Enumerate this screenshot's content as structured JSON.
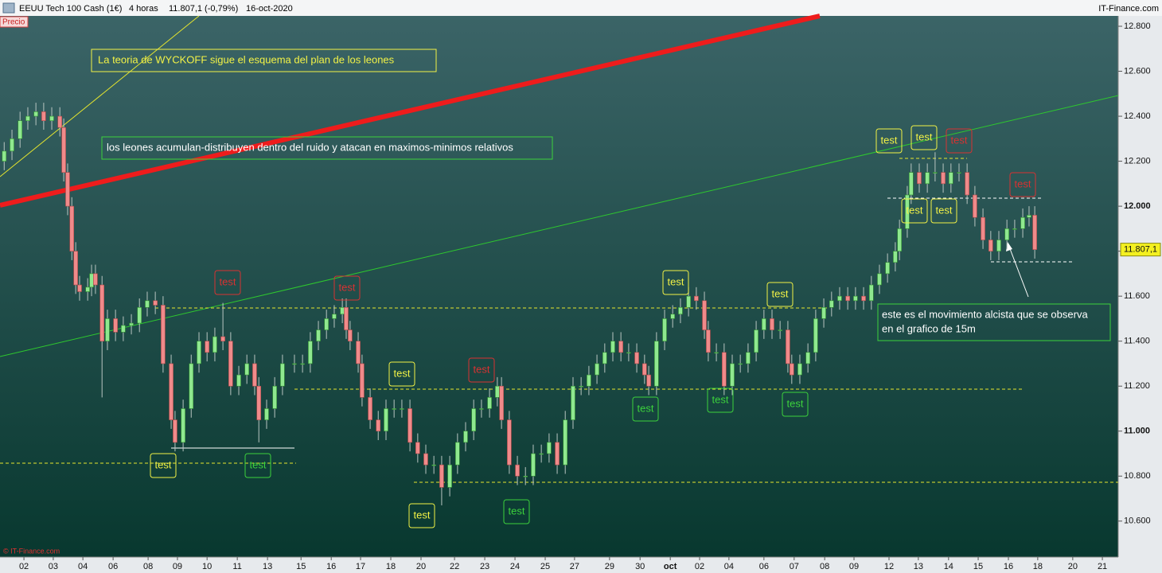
{
  "header": {
    "symbol": "EEUU Tech 100 Cash (1€)",
    "timeframe": "4 horas",
    "quote": "11.807,1 (-0,79%)",
    "date": "16-oct-2020",
    "brand": "IT-Finance.com",
    "series_label": "Precio",
    "copyright": "© IT-Finance.com"
  },
  "chart_data": {
    "type": "candlestick",
    "up_color": "#8fe88f",
    "down_color": "#f08a8a",
    "last_label": "11.807,1",
    "xlim": [
      -0.8,
      36.57
    ],
    "ylim": [
      10440,
      12846
    ],
    "xticks": [
      {
        "value": 0,
        "label": "02"
      },
      {
        "value": 0.98,
        "label": "03"
      },
      {
        "value": 1.97,
        "label": "04"
      },
      {
        "value": 2.98,
        "label": "06"
      },
      {
        "value": 4.15,
        "label": "08"
      },
      {
        "value": 5.13,
        "label": "09"
      },
      {
        "value": 6.12,
        "label": "10"
      },
      {
        "value": 7.13,
        "label": "11"
      },
      {
        "value": 8.14,
        "label": "13"
      },
      {
        "value": 9.26,
        "label": "15"
      },
      {
        "value": 10.27,
        "label": "16"
      },
      {
        "value": 11.25,
        "label": "17"
      },
      {
        "value": 12.26,
        "label": "18"
      },
      {
        "value": 13.27,
        "label": "20"
      },
      {
        "value": 14.39,
        "label": "22"
      },
      {
        "value": 15.4,
        "label": "23"
      },
      {
        "value": 16.41,
        "label": "24"
      },
      {
        "value": 17.42,
        "label": "25"
      },
      {
        "value": 18.4,
        "label": "27"
      },
      {
        "value": 19.57,
        "label": "29"
      },
      {
        "value": 20.59,
        "label": "30"
      },
      {
        "value": 21.6,
        "label": "oct"
      },
      {
        "value": 22.58,
        "label": "02"
      },
      {
        "value": 23.56,
        "label": "04"
      },
      {
        "value": 24.73,
        "label": "06"
      },
      {
        "value": 25.74,
        "label": "07"
      },
      {
        "value": 26.76,
        "label": "08"
      },
      {
        "value": 27.74,
        "label": "09"
      },
      {
        "value": 28.91,
        "label": "12"
      },
      {
        "value": 29.89,
        "label": "13"
      },
      {
        "value": 30.9,
        "label": "14"
      },
      {
        "value": 31.89,
        "label": "15"
      },
      {
        "value": 32.9,
        "label": "16"
      },
      {
        "value": 33.88,
        "label": "18"
      },
      {
        "value": 35.05,
        "label": "20"
      },
      {
        "value": 36.04,
        "label": "21"
      }
    ],
    "yticks": [
      {
        "value": 10600,
        "label": "10.600"
      },
      {
        "value": 10800,
        "label": "10.800"
      },
      {
        "value": 11000,
        "label": "11.000"
      },
      {
        "value": 11200,
        "label": "11.200"
      },
      {
        "value": 11400,
        "label": "11.400"
      },
      {
        "value": 11600,
        "label": "11.600"
      },
      {
        "value": 11800,
        "label": "11.800"
      },
      {
        "value": 12000,
        "label": "12.000"
      },
      {
        "value": 12200,
        "label": "12.200"
      },
      {
        "value": 12400,
        "label": "12.400"
      },
      {
        "value": 12600,
        "label": "12.600"
      },
      {
        "value": 12800,
        "label": "12.800"
      }
    ],
    "x": [
      -0.66,
      -0.4,
      -0.13,
      0.13,
      0.4,
      0.66,
      0.93,
      1.2,
      1.33,
      1.46,
      1.6,
      1.73,
      1.86,
      2.13,
      2.26,
      2.39,
      2.61,
      2.79,
      3.06,
      3.32,
      3.59,
      3.86,
      4.12,
      4.39,
      4.65,
      4.92,
      5.05,
      5.32,
      5.59,
      5.85,
      6.12,
      6.38,
      6.65,
      6.91,
      7.18,
      7.45,
      7.71,
      7.85,
      8.11,
      8.38,
      8.64,
      9.04,
      9.31,
      9.57,
      9.84,
      10.11,
      10.37,
      10.64,
      10.77,
      10.9,
      11.17,
      11.3,
      11.57,
      11.84,
      12.1,
      12.37,
      12.63,
      12.9,
      13.16,
      13.43,
      13.7,
      13.96,
      14.23,
      14.49,
      14.76,
      15.03,
      15.29,
      15.56,
      15.82,
      15.96,
      16.22,
      16.49,
      16.76,
      17.02,
      17.29,
      17.55,
      17.82,
      18.09,
      18.35,
      18.62,
      18.88,
      19.15,
      19.41,
      19.68,
      19.95,
      20.21,
      20.48,
      20.74,
      20.88,
      21.14,
      21.41,
      21.68,
      21.94,
      22.21,
      22.47,
      22.74,
      22.87,
      23.14,
      23.4,
      23.67,
      23.94,
      24.2,
      24.47,
      24.73,
      25.0,
      25.27,
      25.53,
      25.66,
      25.93,
      26.2,
      26.46,
      26.73,
      26.99,
      27.26,
      27.53,
      27.79,
      28.06,
      28.32,
      28.59,
      28.86,
      29.12,
      29.26,
      29.52,
      29.65,
      29.92,
      30.19,
      30.45,
      30.72,
      30.98,
      31.25,
      31.52,
      31.78,
      32.05,
      32.31,
      32.58,
      32.85,
      33.11,
      33.38,
      33.59,
      33.78
    ],
    "open": [
      12200,
      12245,
      12300,
      12380,
      12400,
      12420,
      12380,
      12400,
      12350,
      12150,
      12000,
      11800,
      11650,
      11620,
      11640,
      11700,
      11650,
      11400,
      11500,
      11440,
      11470,
      11480,
      11550,
      11580,
      11560,
      11300,
      11050,
      10950,
      11100,
      11300,
      11400,
      11350,
      11420,
      11400,
      11200,
      11250,
      11300,
      11200,
      11050,
      11100,
      11200,
      11300,
      11300,
      11300,
      11400,
      11450,
      11500,
      11520,
      11550,
      11450,
      11400,
      11300,
      11150,
      11050,
      11000,
      11100,
      11100,
      11100,
      10950,
      10900,
      10850,
      10850,
      10750,
      10850,
      10950,
      11000,
      11100,
      11100,
      11150,
      11200,
      11050,
      10850,
      10800,
      10800,
      10900,
      10900,
      10950,
      10850,
      11050,
      11200,
      11200,
      11250,
      11300,
      11350,
      11400,
      11350,
      11350,
      11300,
      11250,
      11200,
      11400,
      11500,
      11520,
      11550,
      11600,
      11580,
      11450,
      11350,
      11350,
      11200,
      11300,
      11300,
      11350,
      11450,
      11500,
      11450,
      11450,
      11300,
      11250,
      11300,
      11350,
      11500,
      11550,
      11580,
      11600,
      11580,
      11600,
      11580,
      11650,
      11700,
      11750,
      11800,
      11900,
      12050,
      12150,
      12100,
      12150,
      12150,
      12100,
      12150,
      12150,
      12050,
      11950,
      11850,
      11800,
      11850,
      11900,
      11900,
      11950,
      11960
    ],
    "high": [
      12285,
      12340,
      12420,
      12440,
      12460,
      12460,
      12440,
      12440,
      12390,
      12190,
      12040,
      11840,
      11690,
      11680,
      11740,
      11740,
      11690,
      11540,
      11540,
      11510,
      11520,
      11590,
      11620,
      11620,
      11600,
      11340,
      11090,
      11140,
      11340,
      11440,
      11440,
      11460,
      11570,
      11440,
      11290,
      11340,
      11340,
      11240,
      11140,
      11240,
      11340,
      11340,
      11340,
      11440,
      11490,
      11540,
      11560,
      11590,
      11590,
      11490,
      11440,
      11340,
      11190,
      11090,
      11140,
      11140,
      11140,
      11140,
      10990,
      10940,
      10890,
      10890,
      10890,
      10990,
      11040,
      11140,
      11140,
      11190,
      11240,
      11240,
      11090,
      10890,
      10840,
      10940,
      10940,
      10990,
      10990,
      11090,
      11240,
      11240,
      11290,
      11340,
      11390,
      11440,
      11440,
      11390,
      11390,
      11340,
      11290,
      11440,
      11540,
      11560,
      11590,
      11640,
      11640,
      11620,
      11490,
      11390,
      11390,
      11340,
      11340,
      11390,
      11490,
      11540,
      11540,
      11490,
      11490,
      11340,
      11340,
      11390,
      11540,
      11590,
      11620,
      11640,
      11640,
      11640,
      11640,
      11690,
      11740,
      11790,
      11840,
      11940,
      12090,
      12190,
      12190,
      12190,
      12240,
      12190,
      12190,
      12190,
      12190,
      12090,
      11990,
      11890,
      11890,
      11940,
      11940,
      11990,
      12000,
      12000
    ],
    "low": [
      12160,
      12205,
      12260,
      12340,
      12360,
      12340,
      12340,
      12310,
      12110,
      11960,
      11760,
      11610,
      11580,
      11580,
      11600,
      11610,
      11150,
      11360,
      11400,
      11400,
      11430,
      11440,
      11510,
      11520,
      11260,
      11010,
      10910,
      10910,
      11060,
      11260,
      11310,
      11310,
      11360,
      11160,
      11160,
      11210,
      11160,
      10950,
      11010,
      11060,
      11160,
      11260,
      11260,
      11260,
      11360,
      11410,
      11460,
      11480,
      11410,
      11360,
      11260,
      11110,
      11010,
      10960,
      10960,
      11060,
      11060,
      10910,
      10860,
      10810,
      10810,
      10670,
      10710,
      10810,
      10910,
      10960,
      11060,
      11060,
      11110,
      11010,
      10810,
      10760,
      10760,
      10760,
      10860,
      10860,
      10810,
      10810,
      11010,
      11160,
      11160,
      11210,
      11260,
      11310,
      11310,
      11310,
      11260,
      11210,
      11160,
      11160,
      11360,
      11460,
      11480,
      11510,
      11540,
      11410,
      11310,
      11310,
      11160,
      11160,
      11260,
      11260,
      11310,
      11410,
      11410,
      11410,
      11260,
      11210,
      11210,
      11260,
      11310,
      11460,
      11510,
      11540,
      11540,
      11540,
      11540,
      11540,
      11610,
      11660,
      11710,
      11760,
      11860,
      12010,
      12060,
      12060,
      12110,
      12060,
      12060,
      12110,
      12010,
      11910,
      11810,
      11760,
      11760,
      11810,
      11860,
      11860,
      11910,
      11767
    ],
    "close": [
      12245,
      12300,
      12380,
      12400,
      12420,
      12380,
      12400,
      12350,
      12150,
      12000,
      11800,
      11650,
      11620,
      11640,
      11700,
      11650,
      11400,
      11500,
      11440,
      11470,
      11480,
      11550,
      11580,
      11560,
      11300,
      11050,
      10950,
      11100,
      11300,
      11400,
      11350,
      11420,
      11400,
      11200,
      11250,
      11300,
      11200,
      11050,
      11100,
      11200,
      11300,
      11300,
      11300,
      11400,
      11450,
      11500,
      11520,
      11550,
      11450,
      11400,
      11300,
      11150,
      11050,
      11000,
      11100,
      11100,
      11100,
      10950,
      10900,
      10850,
      10850,
      10750,
      10850,
      10950,
      11000,
      11100,
      11100,
      11150,
      11200,
      11050,
      10850,
      10800,
      10800,
      10900,
      10900,
      10950,
      10850,
      11050,
      11200,
      11200,
      11250,
      11300,
      11350,
      11400,
      11350,
      11350,
      11300,
      11250,
      11200,
      11400,
      11500,
      11520,
      11550,
      11600,
      11580,
      11450,
      11350,
      11350,
      11200,
      11300,
      11300,
      11350,
      11450,
      11500,
      11450,
      11450,
      11300,
      11250,
      11300,
      11350,
      11500,
      11550,
      11580,
      11600,
      11580,
      11600,
      11580,
      11650,
      11700,
      11750,
      11800,
      11900,
      12050,
      12150,
      12100,
      12150,
      12150,
      12100,
      12150,
      12150,
      12050,
      11950,
      11850,
      11800,
      11850,
      11900,
      11900,
      11950,
      11960,
      11807.1
    ],
    "notes": [
      {
        "text": "La teoria de  WYCKOFF   sigue el esquema del plan de los leones",
        "color": "#f2f246"
      },
      {
        "text": "los leones acumulan-distribuyen dentro del ruido y atacan en maximos-minimos relativos",
        "color": "#3cd23c"
      },
      {
        "lines": [
          "este es el movimiento alcista que se observa",
          "en el grafico de 15m"
        ],
        "color": "#3cd23c"
      }
    ],
    "annotations": [
      {
        "text": "test",
        "color": "#f2f246"
      },
      {
        "text": "test",
        "color": "#f2f246"
      },
      {
        "text": "test",
        "color": "#f2f246"
      },
      {
        "text": "test",
        "color": "#f2f246"
      },
      {
        "text": "test",
        "color": "#f2f246"
      },
      {
        "text": "test",
        "color": "#f2f246"
      },
      {
        "text": "test",
        "color": "#f2f246"
      },
      {
        "text": "test",
        "color": "#f2f246"
      },
      {
        "text": "test",
        "color": "#f2f246"
      },
      {
        "text": "test",
        "color": "#d83232"
      },
      {
        "text": "test",
        "color": "#d83232"
      },
      {
        "text": "test",
        "color": "#d83232"
      },
      {
        "text": "test",
        "color": "#d83232"
      },
      {
        "text": "test",
        "color": "#d83232"
      },
      {
        "text": "test",
        "color": "#3cd23c"
      },
      {
        "text": "test",
        "color": "#3cd23c"
      },
      {
        "text": "test",
        "color": "#3cd23c"
      },
      {
        "text": "test",
        "color": "#3cd23c"
      },
      {
        "text": "test",
        "color": "#3cd23c"
      }
    ]
  }
}
